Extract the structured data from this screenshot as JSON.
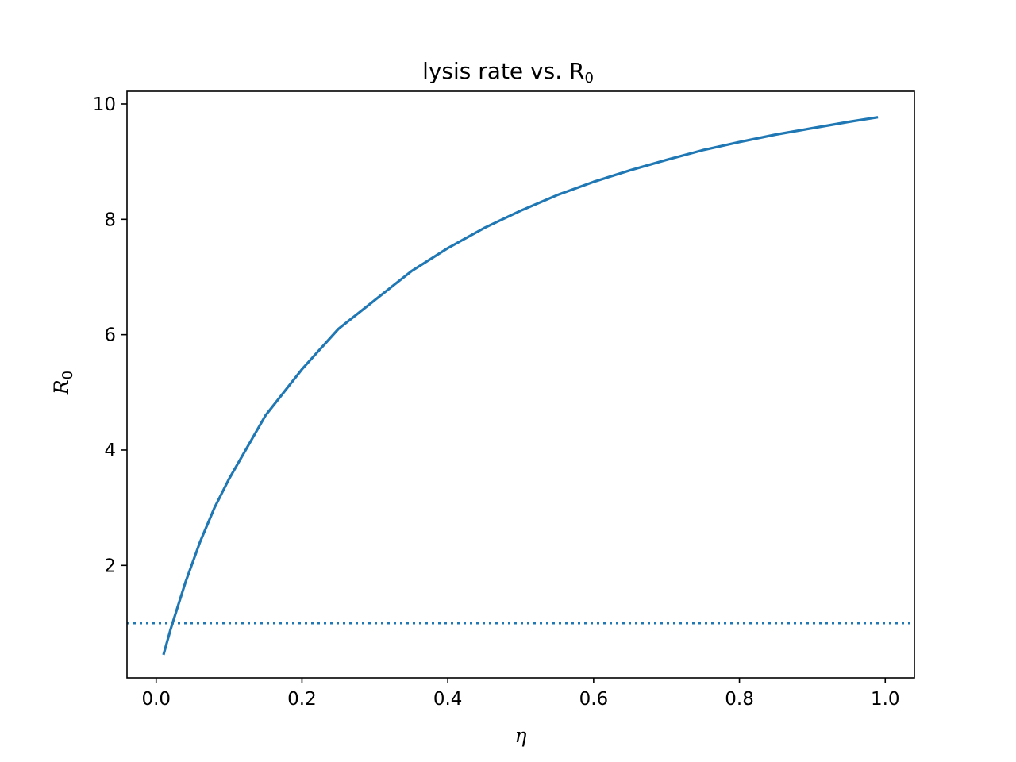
{
  "chart_data": {
    "type": "line",
    "title": "lysis rate vs. R",
    "title_subscript": "0",
    "xlabel": "η",
    "ylabel": "R",
    "ylabel_subscript": "0",
    "xlim": [
      -0.04,
      1.04
    ],
    "ylim": [
      0.05,
      10.22
    ],
    "xticks": [
      0.0,
      0.2,
      0.4,
      0.6,
      0.8,
      1.0
    ],
    "xtick_labels": [
      "0.0",
      "0.2",
      "0.4",
      "0.6",
      "0.8",
      "1.0"
    ],
    "yticks": [
      2,
      4,
      6,
      8,
      10
    ],
    "ytick_labels": [
      "2",
      "4",
      "6",
      "8",
      "10"
    ],
    "grid": false,
    "series": [
      {
        "color": "#1f77b4",
        "style": "solid",
        "x": [
          0.01,
          0.02,
          0.04,
          0.06,
          0.08,
          0.1,
          0.15,
          0.2,
          0.25,
          0.3,
          0.35,
          0.4,
          0.45,
          0.5,
          0.55,
          0.6,
          0.65,
          0.7,
          0.75,
          0.8,
          0.85,
          0.9,
          0.95,
          0.99
        ],
        "y": [
          0.45,
          0.9,
          1.7,
          2.4,
          3.0,
          3.5,
          4.6,
          5.4,
          6.1,
          6.6,
          7.1,
          7.5,
          7.85,
          8.15,
          8.42,
          8.65,
          8.85,
          9.03,
          9.2,
          9.34,
          9.47,
          9.58,
          9.69,
          9.77
        ]
      }
    ],
    "hlines": [
      {
        "y": 1.0,
        "color": "#1f77b4",
        "style": "dotted"
      }
    ]
  }
}
